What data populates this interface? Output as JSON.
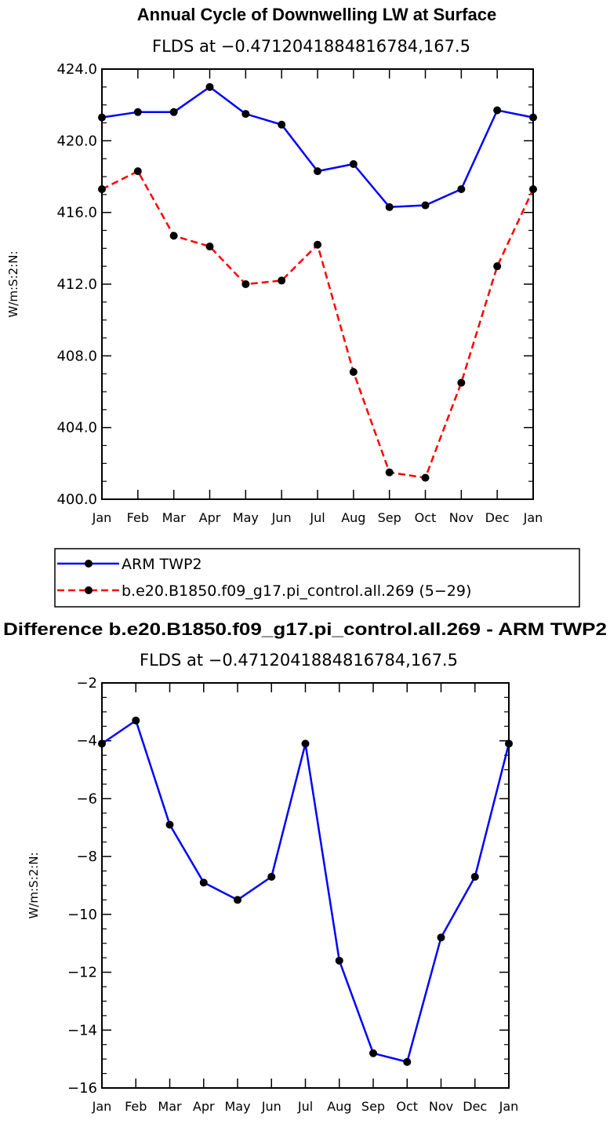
{
  "chart_data": [
    {
      "type": "line",
      "title": "Annual Cycle of Downwelling LW at Surface",
      "subtitle": "FLDS at −0.4712041884816784,167.5",
      "ylabel": "W/m:S:2:N:",
      "xlabel": "",
      "categories": [
        "Jan",
        "Feb",
        "Mar",
        "Apr",
        "May",
        "Jun",
        "Jul",
        "Aug",
        "Sep",
        "Oct",
        "Nov",
        "Dec",
        "Jan"
      ],
      "ylim": [
        400,
        424
      ],
      "yticks": [
        "400.0",
        "404.0",
        "408.0",
        "412.0",
        "416.0",
        "420.0",
        "424.0"
      ],
      "ytick_values": [
        400,
        404,
        408,
        412,
        416,
        420,
        424
      ],
      "series": [
        {
          "name": "ARM TWP2",
          "color": "#0000ff",
          "dash": "solid",
          "values": [
            421.3,
            421.6,
            421.6,
            423.0,
            421.5,
            420.9,
            418.3,
            418.7,
            416.3,
            416.4,
            417.3,
            421.7,
            421.3
          ]
        },
        {
          "name": "b.e20.B1850.f09_g17.pi_control.all.269 (5−29)",
          "color": "#ff0000",
          "dash": "dashed",
          "values": [
            417.3,
            418.3,
            414.7,
            414.1,
            412.0,
            412.2,
            414.2,
            407.1,
            401.5,
            401.2,
            406.5,
            413.0,
            417.3
          ]
        }
      ]
    },
    {
      "type": "line",
      "title": "Difference b.e20.B1850.f09_g17.pi_control.all.269 - ARM TWP2",
      "subtitle": "FLDS at −0.4712041884816784,167.5",
      "ylabel": "W/m:S:2:N:",
      "xlabel": "",
      "categories": [
        "Jan",
        "Feb",
        "Mar",
        "Apr",
        "May",
        "Jun",
        "Jul",
        "Aug",
        "Sep",
        "Oct",
        "Nov",
        "Dec",
        "Jan"
      ],
      "ylim": [
        -16,
        -2
      ],
      "yticks": [
        "−16",
        "−14",
        "−12",
        "−10",
        "−8",
        "−6",
        "−4",
        "−2"
      ],
      "ytick_values": [
        -16,
        -14,
        -12,
        -10,
        -8,
        -6,
        -4,
        -2
      ],
      "series": [
        {
          "name": "Difference",
          "color": "#0000ff",
          "dash": "solid",
          "values": [
            -4.1,
            -3.3,
            -6.9,
            -8.9,
            -9.5,
            -8.7,
            -4.1,
            -11.6,
            -14.8,
            -15.1,
            -10.8,
            -8.7,
            -4.1
          ]
        }
      ]
    }
  ]
}
